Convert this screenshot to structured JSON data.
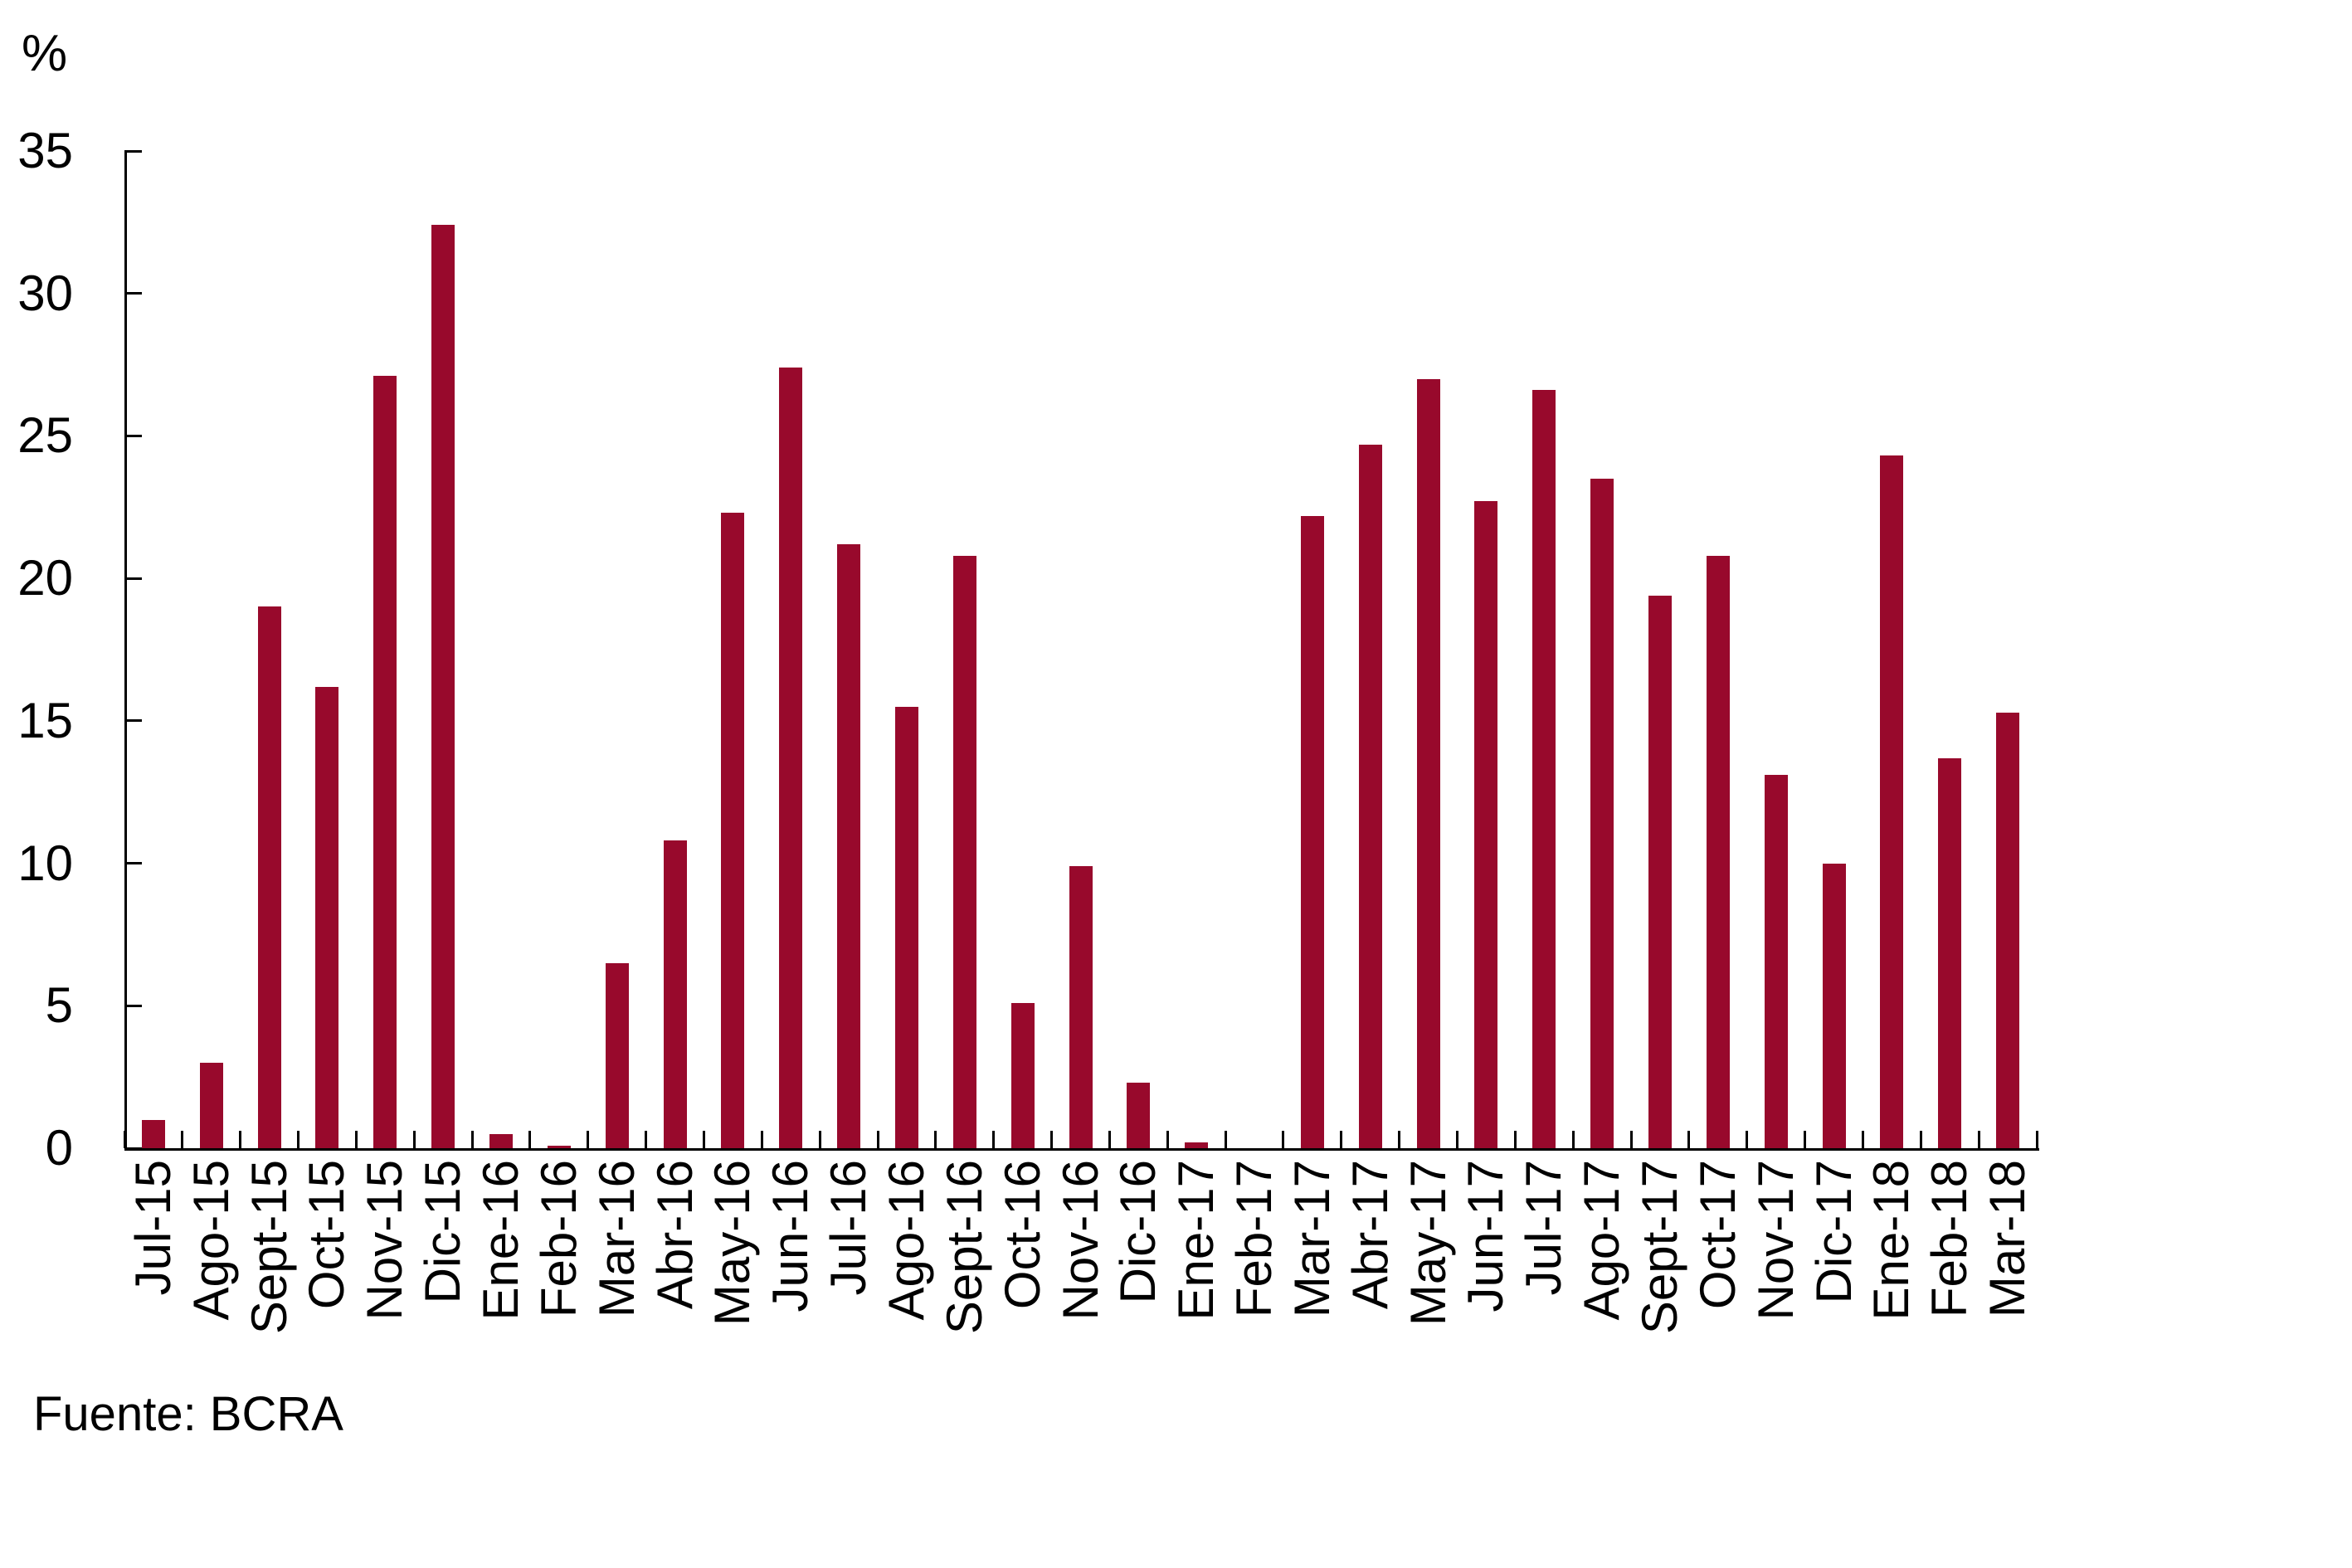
{
  "chart_data": {
    "type": "bar",
    "title": "",
    "xlabel": "",
    "ylabel": "%",
    "ylim": [
      0,
      35
    ],
    "yticks": [
      0,
      5,
      10,
      15,
      20,
      25,
      30,
      35
    ],
    "grid": false,
    "legend_position": "none",
    "bar_color": "#98092C",
    "axis_color": "#000000",
    "categories": [
      "Jul-15",
      "Ago-15",
      "Sept-15",
      "Oct-15",
      "Nov-15",
      "Dic-15",
      "Ene-16",
      "Feb-16",
      "Mar-16",
      "Abr-16",
      "May-16",
      "Jun-16",
      "Jul-16",
      "Ago-16",
      "Sept-16",
      "Oct-16",
      "Nov-16",
      "Dic-16",
      "Ene-17",
      "Feb-17",
      "Mar-17",
      "Abr-17",
      "May-17",
      "Jun-17",
      "Jul-17",
      "Ago-17",
      "Sept-17",
      "Oct-17",
      "Nov-17",
      "Dic-17",
      "Ene-18",
      "Feb-18",
      "Mar-18"
    ],
    "values": [
      1.0,
      3.0,
      19.0,
      16.2,
      27.1,
      32.4,
      0.5,
      0.1,
      6.5,
      10.8,
      22.3,
      27.4,
      21.2,
      15.5,
      20.8,
      5.1,
      9.9,
      2.3,
      0.2,
      0.0,
      22.2,
      24.7,
      27.0,
      22.7,
      26.6,
      23.5,
      19.4,
      20.8,
      13.1,
      10.0,
      24.3,
      13.7,
      15.3
    ]
  },
  "labels": {
    "y_axis_unit": "%",
    "source": "Fuente: BCRA"
  }
}
